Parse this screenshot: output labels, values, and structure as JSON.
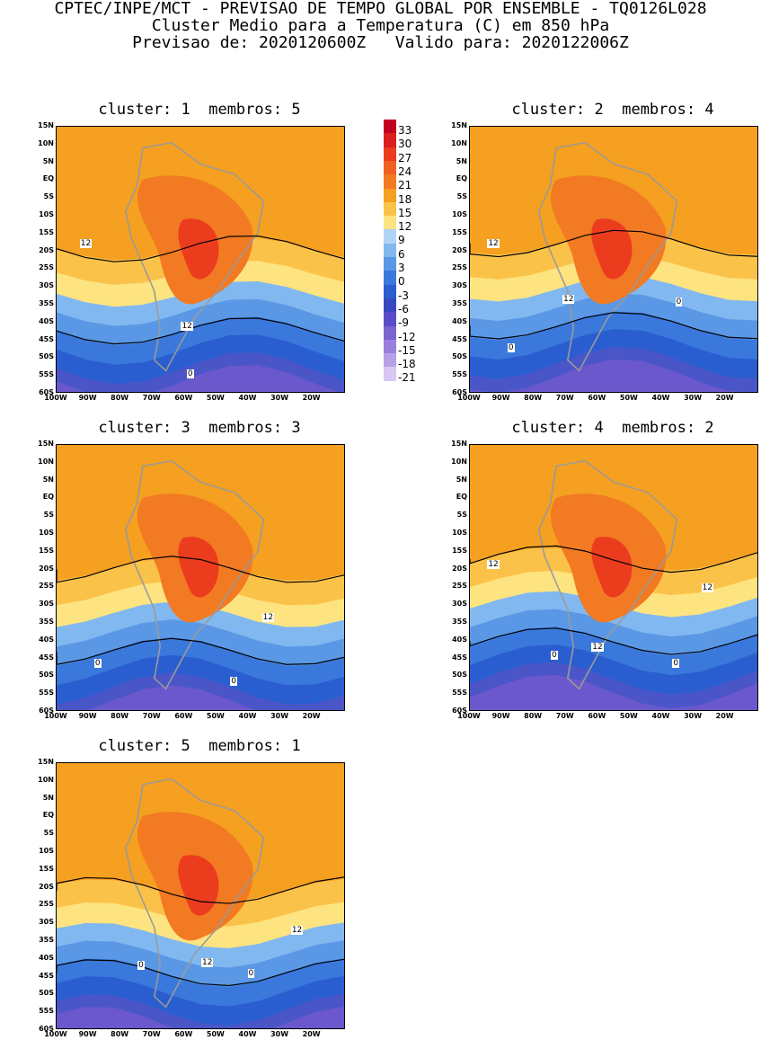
{
  "header": {
    "line1": "CPTEC/INPE/MCT - PREVISAO DE TEMPO GLOBAL POR ENSEMBLE - TQ0126L028",
    "line2": "Cluster Medio para a Temperatura (C) em 850 hPa",
    "line3": "Previsao de: 2020120600Z   Valido para: 2020122006Z"
  },
  "panels": [
    {
      "title": "cluster: 1  membros: 5",
      "labels": [
        "12",
        "12",
        "0"
      ]
    },
    {
      "title": "cluster: 2  membros: 4",
      "labels": [
        "12",
        "12",
        "0",
        "0"
      ]
    },
    {
      "title": "cluster: 3  membros: 3",
      "labels": [
        "12",
        "0",
        "0"
      ]
    },
    {
      "title": "cluster: 4  membros: 2",
      "labels": [
        "12",
        "12",
        "12",
        "0",
        "0"
      ]
    },
    {
      "title": "cluster: 5  membros: 1",
      "labels": [
        "12",
        "12",
        "0",
        "0"
      ]
    }
  ],
  "axes": {
    "y_ticks": [
      "15N",
      "10N",
      "5N",
      "EQ",
      "5S",
      "10S",
      "15S",
      "20S",
      "25S",
      "30S",
      "35S",
      "40S",
      "45S",
      "50S",
      "55S",
      "60S"
    ],
    "x_ticks": [
      "100W",
      "90W",
      "80W",
      "70W",
      "60W",
      "50W",
      "40W",
      "30W",
      "20W"
    ]
  },
  "colorbar": {
    "labels": [
      "33",
      "30",
      "27",
      "24",
      "21",
      "18",
      "15",
      "12",
      "9",
      "6",
      "3",
      "0",
      "-3",
      "-6",
      "-9",
      "-12",
      "-15",
      "-18",
      "-21"
    ],
    "colors": [
      "#c0001e",
      "#dc1e1e",
      "#ec3c1e",
      "#f06020",
      "#f27a22",
      "#f5a020",
      "#fbc24a",
      "#fde480",
      "#b0d4f5",
      "#82b8f0",
      "#5a98e6",
      "#3a78dc",
      "#2a5ed0",
      "#3a48c0",
      "#5a4cc8",
      "#7a64d0",
      "#9a80dc",
      "#b8a0e8",
      "#d8c8f4"
    ]
  }
}
